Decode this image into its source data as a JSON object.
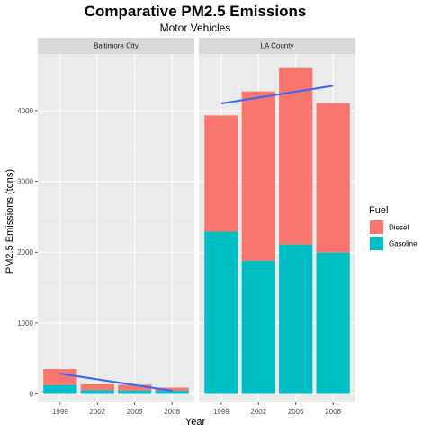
{
  "chart_data": {
    "type": "bar",
    "stacked": true,
    "title": "Comparative PM2.5 Emissions",
    "subtitle": "Motor Vehicles",
    "xlabel": "Year",
    "ylabel": "PM2.5 Emissions (tons)",
    "ylim": [
      -120,
      4800
    ],
    "y_ticks": [
      0,
      1000,
      2000,
      3000,
      4000
    ],
    "grid": true,
    "legend": {
      "title": "Fuel",
      "placement": "right",
      "entries": [
        {
          "name": "Diesel",
          "color": "#F8766D"
        },
        {
          "name": "Gasoline",
          "color": "#00BFC4"
        }
      ]
    },
    "trend_color": "#3366FF",
    "facets": [
      {
        "name": "Baltimore City",
        "categories": [
          "1999",
          "2002",
          "2005",
          "2008"
        ],
        "series": [
          {
            "name": "Gasoline",
            "values": [
              125,
              55,
              50,
              45
            ]
          },
          {
            "name": "Diesel",
            "values": [
              225,
              80,
              80,
              45
            ]
          }
        ],
        "trend": {
          "start": 285,
          "end": 45
        }
      },
      {
        "name": "LA County",
        "categories": [
          "1999",
          "2002",
          "2005",
          "2008"
        ],
        "series": [
          {
            "name": "Gasoline",
            "values": [
              2290,
              1880,
              2110,
              1995
            ]
          },
          {
            "name": "Diesel",
            "values": [
              1640,
              2390,
              2490,
              2110
            ]
          }
        ],
        "trend": {
          "start": 4100,
          "end": 4350
        }
      }
    ]
  }
}
